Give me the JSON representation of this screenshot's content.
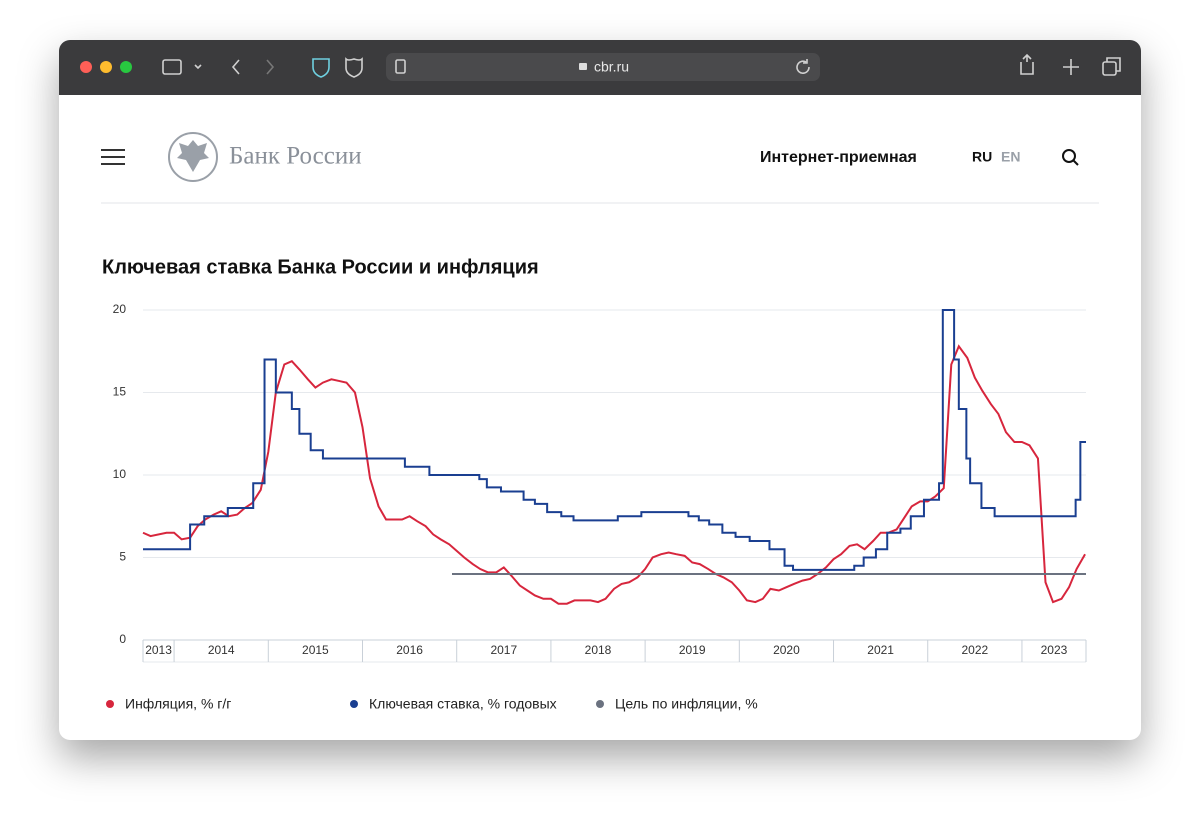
{
  "browser": {
    "url": "cbr.ru"
  },
  "header": {
    "logo": "Банк России",
    "nav": "Интернет-приемная",
    "languages": [
      "RU",
      "EN"
    ]
  },
  "chart_data": {
    "type": "line",
    "title": "Ключевая ставка Банка России и инфляция",
    "xlim": [
      2013.67,
      2023.68
    ],
    "xticks": [
      2013,
      2014,
      2015,
      2016,
      2017,
      2018,
      2019,
      2020,
      2021,
      2022,
      2023
    ],
    "ylim": [
      0,
      20
    ],
    "yticks": [
      0,
      5,
      10,
      15,
      20
    ],
    "grid": true,
    "legend": "bottom",
    "series": [
      {
        "name": "Инфляция, % г/г",
        "color": "#d7263d",
        "step": false,
        "x": [
          2013.67,
          2013.75,
          2013.92,
          2014.0,
          2014.08,
          2014.17,
          2014.25,
          2014.33,
          2014.42,
          2014.5,
          2014.58,
          2014.67,
          2014.75,
          2014.83,
          2014.92,
          2015.0,
          2015.08,
          2015.17,
          2015.25,
          2015.33,
          2015.42,
          2015.5,
          2015.58,
          2015.67,
          2015.75,
          2015.83,
          2015.92,
          2016.0,
          2016.08,
          2016.17,
          2016.25,
          2016.33,
          2016.42,
          2016.5,
          2016.58,
          2016.67,
          2016.75,
          2016.83,
          2016.92,
          2017.0,
          2017.08,
          2017.17,
          2017.25,
          2017.33,
          2017.42,
          2017.5,
          2017.58,
          2017.67,
          2017.75,
          2017.83,
          2017.92,
          2018.0,
          2018.08,
          2018.17,
          2018.25,
          2018.33,
          2018.42,
          2018.5,
          2018.58,
          2018.67,
          2018.75,
          2018.83,
          2018.92,
          2019.0,
          2019.08,
          2019.17,
          2019.25,
          2019.33,
          2019.42,
          2019.5,
          2019.58,
          2019.67,
          2019.75,
          2019.83,
          2019.92,
          2020.0,
          2020.08,
          2020.17,
          2020.25,
          2020.33,
          2020.42,
          2020.5,
          2020.58,
          2020.67,
          2020.75,
          2020.83,
          2020.92,
          2021.0,
          2021.08,
          2021.17,
          2021.25,
          2021.33,
          2021.42,
          2021.5,
          2021.58,
          2021.67,
          2021.75,
          2021.83,
          2021.92,
          2022.0,
          2022.08,
          2022.17,
          2022.25,
          2022.33,
          2022.42,
          2022.5,
          2022.58,
          2022.67,
          2022.75,
          2022.83,
          2022.92,
          2023.0,
          2023.08,
          2023.17,
          2023.25,
          2023.33,
          2023.42,
          2023.5,
          2023.58,
          2023.67
        ],
        "values": [
          6.5,
          6.3,
          6.5,
          6.5,
          6.1,
          6.2,
          6.9,
          7.3,
          7.6,
          7.8,
          7.5,
          7.6,
          8.0,
          8.3,
          9.1,
          11.4,
          15.0,
          16.7,
          16.9,
          16.4,
          15.8,
          15.3,
          15.6,
          15.8,
          15.7,
          15.6,
          15.0,
          12.9,
          9.8,
          8.1,
          7.3,
          7.3,
          7.3,
          7.5,
          7.2,
          6.9,
          6.4,
          6.1,
          5.8,
          5.4,
          5.0,
          4.6,
          4.3,
          4.1,
          4.1,
          4.4,
          3.9,
          3.3,
          3.0,
          2.7,
          2.5,
          2.5,
          2.2,
          2.2,
          2.4,
          2.4,
          2.4,
          2.3,
          2.5,
          3.1,
          3.4,
          3.5,
          3.8,
          4.3,
          5.0,
          5.2,
          5.3,
          5.2,
          5.1,
          4.7,
          4.6,
          4.3,
          4.0,
          3.8,
          3.5,
          3.0,
          2.4,
          2.3,
          2.5,
          3.1,
          3.0,
          3.2,
          3.4,
          3.6,
          3.7,
          4.0,
          4.4,
          4.9,
          5.2,
          5.7,
          5.8,
          5.5,
          6.0,
          6.5,
          6.5,
          6.7,
          7.4,
          8.1,
          8.4,
          8.4,
          8.7,
          9.2,
          16.7,
          17.8,
          17.1,
          15.9,
          15.1,
          14.3,
          13.7,
          12.6,
          12.0,
          12.0,
          11.8,
          11.0,
          3.5,
          2.3,
          2.5,
          3.2,
          4.3,
          5.2
        ]
      },
      {
        "name": "Ключевая ставка, % годовых",
        "color": "#1a3f91",
        "step": true,
        "x": [
          2013.67,
          2014.17,
          2014.32,
          2014.57,
          2014.84,
          2014.96,
          2015.08,
          2015.25,
          2015.33,
          2015.45,
          2015.58,
          2016.45,
          2016.71,
          2017.24,
          2017.32,
          2017.47,
          2017.71,
          2017.83,
          2017.96,
          2018.11,
          2018.24,
          2018.71,
          2018.96,
          2019.46,
          2019.57,
          2019.68,
          2019.82,
          2019.96,
          2020.11,
          2020.32,
          2020.48,
          2020.57,
          2021.22,
          2021.32,
          2021.45,
          2021.57,
          2021.71,
          2021.82,
          2021.96,
          2022.12,
          2022.16,
          2022.28,
          2022.33,
          2022.41,
          2022.45,
          2022.57,
          2022.71,
          2023.57,
          2023.62,
          2023.68
        ],
        "values": [
          5.5,
          7,
          7.5,
          8,
          9.5,
          17,
          15,
          14,
          12.5,
          11.5,
          11,
          10.5,
          10,
          9.75,
          9.25,
          9,
          8.5,
          8.25,
          7.75,
          7.5,
          7.25,
          7.5,
          7.75,
          7.5,
          7.25,
          7,
          6.5,
          6.25,
          6,
          5.5,
          4.5,
          4.25,
          4.5,
          5,
          5.5,
          6.5,
          6.75,
          7.5,
          8.5,
          9.5,
          20,
          17,
          14,
          11,
          9.5,
          8,
          7.5,
          8.5,
          12,
          12
        ]
      },
      {
        "name": "Цель по инфляции, %",
        "color": "#6b7280",
        "step": false,
        "x": [
          2016.95,
          2023.68
        ],
        "values": [
          4,
          4
        ]
      }
    ]
  }
}
